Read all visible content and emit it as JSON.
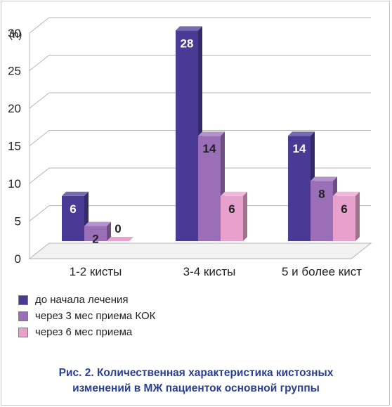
{
  "chart_data": {
    "type": "bar",
    "ylabel": "(n)",
    "ylim": [
      0,
      30
    ],
    "yticks": [
      0,
      5,
      10,
      15,
      20,
      25,
      30
    ],
    "grid": true,
    "style": "3d",
    "categories": [
      "1-2 кисты",
      "3-4 кисты",
      "5 и более кист"
    ],
    "series": [
      {
        "name": "до начала лечения",
        "values": [
          6,
          28,
          14
        ],
        "color": "#4a3a96"
      },
      {
        "name": "через 3 мес приема КОК",
        "values": [
          2,
          14,
          8
        ],
        "color": "#9a6fb8"
      },
      {
        "name": "через 6 мес приема",
        "values": [
          0,
          6,
          6
        ],
        "color": "#e8a0cc"
      }
    ],
    "legend_position": "bottom"
  },
  "caption": {
    "line1": "Рис. 2. Количественная характеристика кистозных",
    "line2": "изменений в МЖ пациенток основной группы"
  }
}
